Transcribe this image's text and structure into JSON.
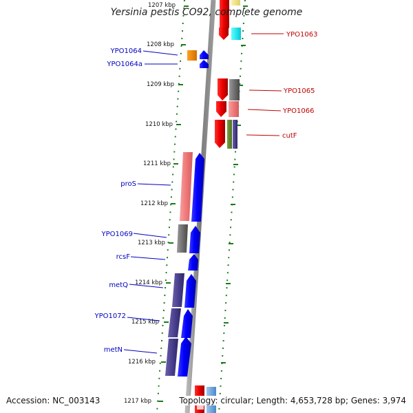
{
  "title": "Yersinia pestis CO92, complete genome",
  "accession_text": "Accession: NC_003143",
  "summary_text": "Topology: circular; Length: 4,653,728 bp; Genes: 3,974",
  "kbp_labels": [
    "1207 kbp",
    "1208 kbp",
    "1209 kbp",
    "1210 kbp",
    "1211 kbp",
    "1212 kbp",
    "1213 kbp",
    "1214 kbp",
    "1215 kbp",
    "1216 kbp",
    "1217 kbp"
  ],
  "colors": {
    "forward_label": "#0000c0",
    "reverse_label": "#c00000",
    "backbone": "#8a8a8a",
    "tick": "#1a7a1a"
  },
  "forward_genes": [
    {
      "name": "YPO1064"
    },
    {
      "name": "YPO1064a"
    },
    {
      "name": "proS"
    },
    {
      "name": "YPO1069"
    },
    {
      "name": "rcsF"
    },
    {
      "name": "metQ"
    },
    {
      "name": "YPO1072"
    },
    {
      "name": "metN"
    }
  ],
  "reverse_genes": [
    {
      "name": "YPO1063"
    },
    {
      "name": "YPO1065"
    },
    {
      "name": "YPO1066"
    },
    {
      "name": "cutF"
    }
  ]
}
